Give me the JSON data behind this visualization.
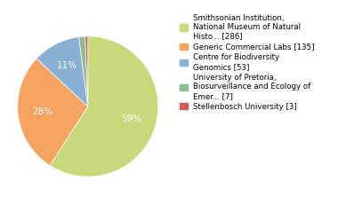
{
  "legend_labels": [
    "Smithsonian Institution,\nNational Museum of Natural\nHisto... [286]",
    "Generic Commercial Labs [135]",
    "Centre for Biodiversity\nGenomics [53]",
    "University of Pretoria,\nBiosurveillance and Ecology of\nEmer... [7]",
    "Stellenbosch University [3]"
  ],
  "values": [
    286,
    135,
    53,
    7,
    3
  ],
  "colors": [
    "#c8d87a",
    "#f4a460",
    "#87b0d4",
    "#8fbc8f",
    "#cd5c5c"
  ],
  "pct_min_show": 4.0,
  "background_color": "#ffffff",
  "pct_fontsize": 7.5,
  "legend_fontsize": 6.2,
  "startangle": 90
}
